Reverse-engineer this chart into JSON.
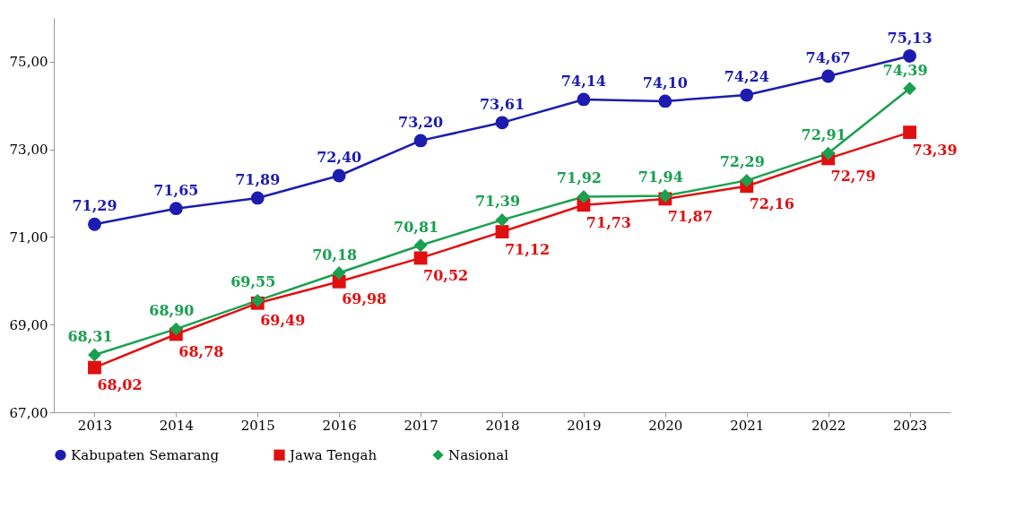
{
  "chart_data": {
    "type": "line",
    "categories": [
      "2013",
      "2014",
      "2015",
      "2016",
      "2017",
      "2018",
      "2019",
      "2020",
      "2021",
      "2022",
      "2023"
    ],
    "series": [
      {
        "name": "Kabupaten Semarang",
        "color": "#1c1cb0",
        "marker": "circle",
        "values": [
          71.29,
          71.65,
          71.89,
          72.4,
          73.2,
          73.61,
          74.14,
          74.1,
          74.24,
          74.67,
          75.13
        ],
        "value_labels": [
          "71,29",
          "71,65",
          "71,89",
          "72,40",
          "73,20",
          "73,61",
          "74,14",
          "74,10",
          "74,24",
          "74,67",
          "75,13"
        ]
      },
      {
        "name": "Jawa Tengah",
        "color": "#e01010",
        "marker": "square",
        "values": [
          68.02,
          68.78,
          69.49,
          69.98,
          70.52,
          71.12,
          71.73,
          71.87,
          72.16,
          72.79,
          73.39
        ],
        "value_labels": [
          "68,02",
          "68,78",
          "69,49",
          "69,98",
          "70,52",
          "71,12",
          "71,73",
          "71,87",
          "72,16",
          "72,79",
          "73,39"
        ]
      },
      {
        "name": "Nasional",
        "color": "#1aa050",
        "marker": "diamond",
        "values": [
          68.31,
          68.9,
          69.55,
          70.18,
          70.81,
          71.39,
          71.92,
          71.94,
          72.29,
          72.91,
          74.39
        ],
        "value_labels": [
          "68,31",
          "68,90",
          "69,55",
          "70,18",
          "70,81",
          "71,39",
          "71,92",
          "71,94",
          "72,29",
          "72,91",
          "74,39"
        ]
      }
    ],
    "ylim": [
      67,
      76
    ],
    "yticks": [
      {
        "value": 67,
        "label": "67,00"
      },
      {
        "value": 69,
        "label": "69,00"
      },
      {
        "value": 71,
        "label": "71,00"
      },
      {
        "value": 73,
        "label": "73,00"
      },
      {
        "value": 75,
        "label": "75,00"
      }
    ],
    "grid": false,
    "legend": "bottom"
  }
}
